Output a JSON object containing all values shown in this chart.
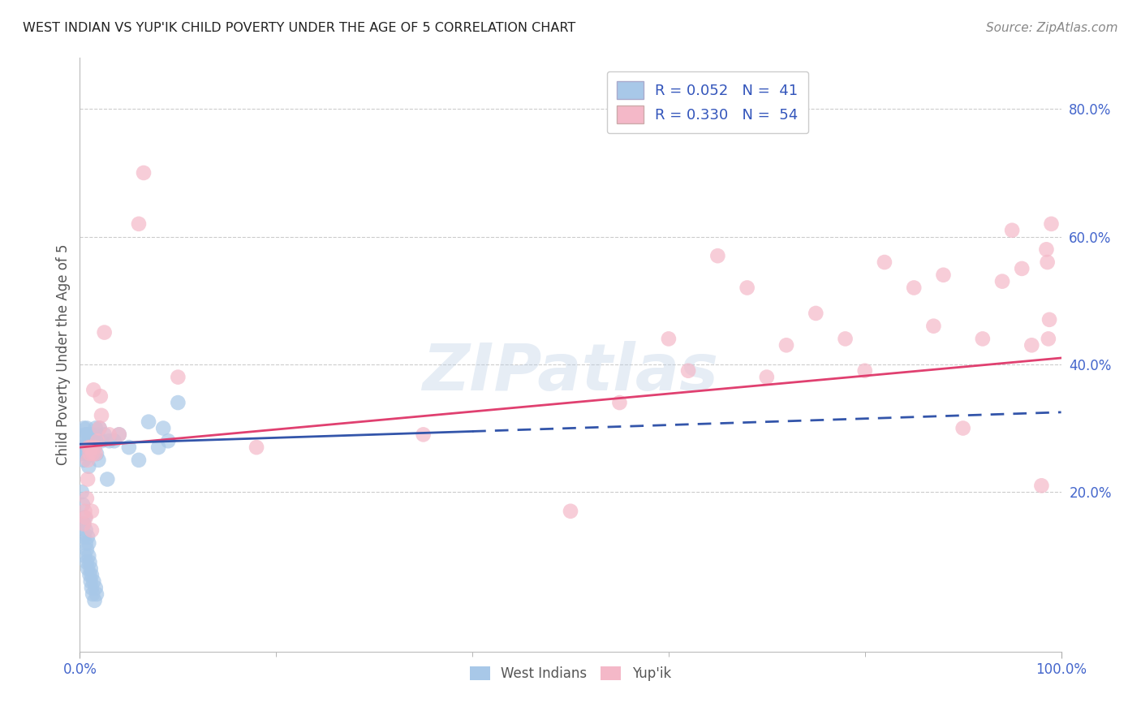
{
  "title": "WEST INDIAN VS YUP'IK CHILD POVERTY UNDER THE AGE OF 5 CORRELATION CHART",
  "source": "Source: ZipAtlas.com",
  "ylabel": "Child Poverty Under the Age of 5",
  "xlim": [
    0,
    1.0
  ],
  "ylim": [
    -0.05,
    0.88
  ],
  "ytick_positions": [
    0.2,
    0.4,
    0.6,
    0.8
  ],
  "ytick_labels": [
    "20.0%",
    "40.0%",
    "60.0%",
    "80.0%"
  ],
  "background_color": "#ffffff",
  "watermark_text": "ZIPatlas",
  "legend_r1": "R = 0.052",
  "legend_n1": "N =  41",
  "legend_r2": "R = 0.330",
  "legend_n2": "N =  54",
  "west_indian_color": "#a8c8e8",
  "yupik_color": "#f4b8c8",
  "west_indian_line_color": "#3355aa",
  "yupik_line_color": "#e04070",
  "grid_color": "#cccccc",
  "title_color": "#222222",
  "axis_label_color": "#555555",
  "tick_color": "#4466cc",
  "west_indian_x": [
    0.002,
    0.003,
    0.004,
    0.004,
    0.005,
    0.005,
    0.006,
    0.006,
    0.007,
    0.007,
    0.008,
    0.008,
    0.009,
    0.009,
    0.01,
    0.01,
    0.011,
    0.011,
    0.012,
    0.012,
    0.013,
    0.014,
    0.015,
    0.016,
    0.017,
    0.018,
    0.019,
    0.02,
    0.022,
    0.025,
    0.028,
    0.03,
    0.035,
    0.04,
    0.05,
    0.06,
    0.07,
    0.08,
    0.085,
    0.09,
    0.1
  ],
  "west_indian_y": [
    0.27,
    0.26,
    0.3,
    0.25,
    0.29,
    0.27,
    0.28,
    0.26,
    0.3,
    0.27,
    0.29,
    0.26,
    0.28,
    0.24,
    0.29,
    0.27,
    0.27,
    0.26,
    0.29,
    0.27,
    0.28,
    0.28,
    0.27,
    0.3,
    0.26,
    0.29,
    0.25,
    0.3,
    0.28,
    0.29,
    0.22,
    0.28,
    0.28,
    0.29,
    0.27,
    0.25,
    0.31,
    0.27,
    0.3,
    0.28,
    0.34
  ],
  "west_indian_low_x": [
    0.002,
    0.003,
    0.004,
    0.004,
    0.005,
    0.005,
    0.006,
    0.006,
    0.007,
    0.007,
    0.008,
    0.008,
    0.009,
    0.009,
    0.01,
    0.01,
    0.011,
    0.011,
    0.012,
    0.012,
    0.013,
    0.014,
    0.015,
    0.016,
    0.017
  ],
  "west_indian_low_y": [
    0.2,
    0.18,
    0.15,
    0.13,
    0.16,
    0.1,
    0.12,
    0.14,
    0.09,
    0.11,
    0.13,
    0.08,
    0.1,
    0.12,
    0.07,
    0.09,
    0.06,
    0.08,
    0.05,
    0.07,
    0.04,
    0.06,
    0.03,
    0.05,
    0.04
  ],
  "yupik_x": [
    0.004,
    0.005,
    0.006,
    0.007,
    0.008,
    0.008,
    0.009,
    0.01,
    0.011,
    0.012,
    0.012,
    0.013,
    0.014,
    0.015,
    0.016,
    0.018,
    0.02,
    0.021,
    0.022,
    0.025,
    0.03,
    0.04,
    0.06,
    0.065,
    0.1,
    0.18,
    0.35,
    0.5,
    0.55,
    0.6,
    0.62,
    0.65,
    0.68,
    0.7,
    0.72,
    0.75,
    0.78,
    0.8,
    0.82,
    0.85,
    0.87,
    0.88,
    0.9,
    0.92,
    0.94,
    0.95,
    0.96,
    0.97,
    0.98,
    0.985,
    0.986,
    0.987,
    0.988,
    0.99
  ],
  "yupik_y": [
    0.15,
    0.17,
    0.16,
    0.19,
    0.22,
    0.25,
    0.27,
    0.26,
    0.27,
    0.14,
    0.17,
    0.26,
    0.36,
    0.27,
    0.26,
    0.28,
    0.3,
    0.35,
    0.32,
    0.45,
    0.29,
    0.29,
    0.62,
    0.7,
    0.38,
    0.27,
    0.29,
    0.17,
    0.34,
    0.44,
    0.39,
    0.57,
    0.52,
    0.38,
    0.43,
    0.48,
    0.44,
    0.39,
    0.56,
    0.52,
    0.46,
    0.54,
    0.3,
    0.44,
    0.53,
    0.61,
    0.55,
    0.43,
    0.21,
    0.58,
    0.56,
    0.44,
    0.47,
    0.62
  ]
}
